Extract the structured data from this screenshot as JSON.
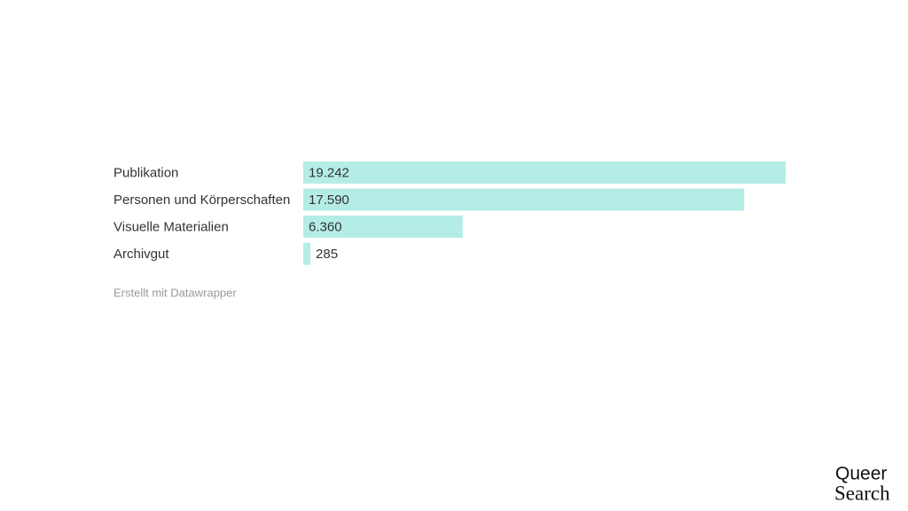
{
  "chart_data": {
    "type": "bar",
    "orientation": "horizontal",
    "categories": [
      "Publikation",
      "Personen und Körperschaften",
      "Visuelle Materialien",
      "Archivgut"
    ],
    "values": [
      19242,
      17590,
      6360,
      285
    ],
    "value_labels": [
      "19.242",
      "17.590",
      "6.360",
      "285"
    ],
    "color": "#b4ede6",
    "credit": "Erstellt mit Datawrapper"
  },
  "logo": {
    "line1": "Queer",
    "line2": "Search"
  }
}
